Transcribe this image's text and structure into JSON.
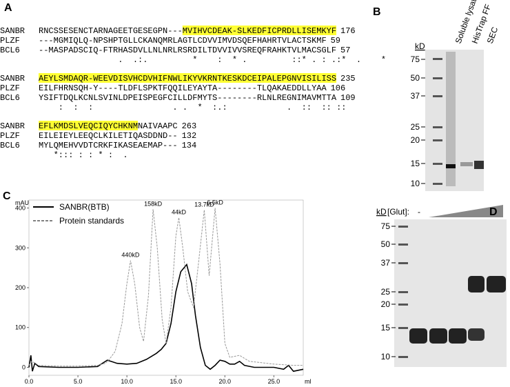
{
  "panel_a": {
    "letter": "A",
    "blocks": [
      {
        "rows": [
          {
            "name": "SANBR",
            "segments": [
              {
                "text": "RNCSSESENCTARNAGEETGESEGPN---",
                "highlight": false
              },
              {
                "text": "MVIHVCDEAK-SLKEDFICPRDLLISEMKYF",
                "highlight": true
              }
            ],
            "end": "176"
          },
          {
            "name": "PLZF",
            "segments": [
              {
                "text": "---MGMIQLQ-NPSHPTGLLCKANQMRLAGTLCDVVIMVDSQEFHAHRTVLACTSKMF",
                "highlight": false
              }
            ],
            "end": "59"
          },
          {
            "name": "BCL6",
            "segments": [
              {
                "text": "--MASPADSCIQ-FTRHASDVLLNLNRLRSRDILTDVVIVVSREQFRAHKTVLMACSGLF",
                "highlight": false
              }
            ],
            "end": "57"
          }
        ],
        "conservation": "                .  .:.         *    :  * .         ::* . : .:*  .    *"
      },
      {
        "rows": [
          {
            "name": "SANBR",
            "segments": [
              {
                "text": "AEYLSMDAQR-WEEVDISVHCDVHIFNWLIKYVKRNTKESKDCEIPALEPGNVISILISS",
                "highlight": true
              }
            ],
            "end": "235"
          },
          {
            "name": "PLZF",
            "segments": [
              {
                "text": "EILFHRNSQH-Y----TLDFLSPKTFQQILEYAYTA--------TLQAKAEDDLLYAA",
                "highlight": false
              }
            ],
            "end": "106"
          },
          {
            "name": "BCL6",
            "segments": [
              {
                "text": "YSIFTDQLKCNLSVINLDPEISPEGFCILLDFMYTS--------RLNLREGNIMAVMTTA",
                "highlight": false
              }
            ],
            "end": "109"
          }
        ],
        "conservation": "    :  :  :                . .  *  :.:            .  ::  :: ::"
      },
      {
        "rows": [
          {
            "name": "SANBR",
            "segments": [
              {
                "text": "EFLKMDSLVEQCIQYCHKNM",
                "highlight": true
              },
              {
                "text": "NAIVAAPC",
                "highlight": false
              }
            ],
            "end": "263"
          },
          {
            "name": "PLZF",
            "segments": [
              {
                "text": "EILEIEYLEEQCLKILETIQASDDND--",
                "highlight": false
              }
            ],
            "end": "132"
          },
          {
            "name": "BCL6",
            "segments": [
              {
                "text": "MYLQMEHVVDTCRKFIKASEAEMAP---",
                "highlight": false
              }
            ],
            "end": "134"
          }
        ],
        "conservation": "   *::: : : * :  ."
      }
    ]
  },
  "panel_b": {
    "letter": "B",
    "unit": "kD",
    "markers": [
      "75",
      "50",
      "37",
      "25",
      "20",
      "15",
      "10"
    ],
    "lanes": [
      "Soluble lysate",
      "HisTrap FF",
      "SEC"
    ]
  },
  "chart_data": {
    "type": "line",
    "letter": "C",
    "y_label": "mAU",
    "x_label": "ml",
    "xlim": [
      0,
      28
    ],
    "ylim": [
      -20,
      420
    ],
    "xticks": [
      {
        "value": 0,
        "label": "0.0"
      },
      {
        "value": 5,
        "label": "5.0"
      },
      {
        "value": 10,
        "label": "10.0"
      },
      {
        "value": 15,
        "label": "15.0"
      },
      {
        "value": 20,
        "label": "20.0"
      },
      {
        "value": 25,
        "label": "25.0"
      }
    ],
    "yticks": [
      0,
      100,
      200,
      300,
      400
    ],
    "series": [
      {
        "name": "SANBR(BTB)",
        "color": "#000000",
        "style": "solid",
        "x": [
          0,
          0.2,
          0.35,
          0.6,
          1,
          3,
          5,
          7,
          7.5,
          8,
          8.5,
          9,
          10,
          11,
          12,
          13,
          13.5,
          14,
          14.5,
          15,
          15.5,
          16.1,
          16.6,
          17,
          17.5,
          18,
          18.5,
          19,
          19.5,
          20,
          20.5,
          21,
          21.5,
          22,
          23,
          25,
          26,
          26.5,
          27,
          28
        ],
        "values": [
          0,
          30,
          -10,
          10,
          2,
          0,
          0,
          2,
          10,
          18,
          14,
          10,
          8,
          10,
          20,
          35,
          45,
          60,
          110,
          190,
          240,
          258,
          210,
          130,
          50,
          5,
          -5,
          5,
          18,
          15,
          8,
          8,
          15,
          5,
          0,
          0,
          -5,
          5,
          -10,
          -5
        ]
      },
      {
        "name": "Protein standards",
        "color": "#999999",
        "style": "dashed",
        "x": [
          0,
          0.3,
          1,
          3,
          5,
          7,
          7.8,
          8.2,
          8.8,
          9.5,
          10,
          10.37,
          10.8,
          11.3,
          11.7,
          12.2,
          12.67,
          13.1,
          13.6,
          14,
          14.5,
          15,
          15.3,
          15.7,
          16.2,
          16.8,
          17.3,
          17.9,
          18.4,
          19,
          19.5,
          20,
          20.5,
          21.5,
          22.5,
          25,
          27,
          28
        ],
        "values": [
          5,
          15,
          5,
          3,
          3,
          5,
          10,
          20,
          40,
          110,
          210,
          268,
          210,
          100,
          65,
          180,
          397,
          300,
          120,
          60,
          150,
          330,
          376,
          300,
          190,
          150,
          260,
          395,
          230,
          400,
          260,
          60,
          25,
          30,
          15,
          8,
          5,
          5
        ]
      }
    ],
    "annotations": [
      {
        "text": "440kD",
        "x": 10.37,
        "y": 268
      },
      {
        "text": "158kD",
        "x": 12.67,
        "y": 397
      },
      {
        "text": "44kD",
        "x": 15.3,
        "y": 376
      },
      {
        "text": "13.7kD",
        "x": 17.9,
        "y": 395
      },
      {
        "text": "6.5kD",
        "x": 19,
        "y": 400
      }
    ]
  },
  "panel_d": {
    "letter": "D",
    "unit": "kD",
    "condition": "[Glut]:",
    "zero": "-",
    "markers": [
      "75",
      "50",
      "37",
      "25",
      "20",
      "15",
      "10"
    ]
  }
}
